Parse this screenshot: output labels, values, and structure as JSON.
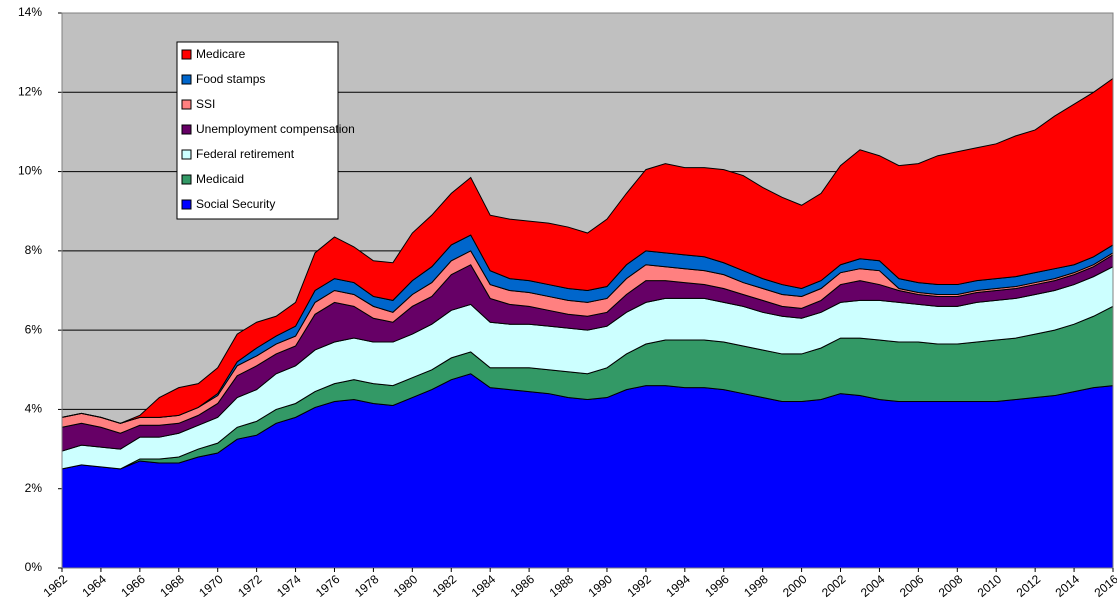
{
  "chart_data": {
    "type": "stacked-area",
    "x": [
      1962,
      1963,
      1964,
      1965,
      1966,
      1967,
      1968,
      1969,
      1970,
      1971,
      1972,
      1973,
      1974,
      1975,
      1976,
      1977,
      1978,
      1979,
      1980,
      1981,
      1982,
      1983,
      1984,
      1985,
      1986,
      1987,
      1988,
      1989,
      1990,
      1991,
      1992,
      1993,
      1994,
      1995,
      1996,
      1997,
      1998,
      1999,
      2000,
      2001,
      2002,
      2003,
      2004,
      2005,
      2006,
      2007,
      2008,
      2009,
      2010,
      2011,
      2012,
      2013,
      2014,
      2015,
      2016
    ],
    "xlim": [
      1962,
      2016
    ],
    "xticks": [
      1962,
      1964,
      1966,
      1968,
      1970,
      1972,
      1974,
      1976,
      1978,
      1980,
      1982,
      1984,
      1986,
      1988,
      1990,
      1992,
      1994,
      1996,
      1998,
      2000,
      2002,
      2004,
      2006,
      2008,
      2010,
      2012,
      2014,
      2016
    ],
    "ylim": [
      0,
      14
    ],
    "yticks": [
      {
        "value": 0,
        "label": "0%"
      },
      {
        "value": 2,
        "label": "2%"
      },
      {
        "value": 4,
        "label": "4%"
      },
      {
        "value": 6,
        "label": "6%"
      },
      {
        "value": 8,
        "label": "8%"
      },
      {
        "value": 10,
        "label": "10%"
      },
      {
        "value": 12,
        "label": "12%"
      },
      {
        "value": 14,
        "label": "14%"
      }
    ],
    "grid": true,
    "legend": "upper left",
    "series": [
      {
        "name": "Social Security",
        "color": "#0000ff",
        "values": [
          2.5,
          2.6,
          2.55,
          2.5,
          2.7,
          2.65,
          2.65,
          2.8,
          2.9,
          3.25,
          3.35,
          3.65,
          3.8,
          4.05,
          4.2,
          4.25,
          4.15,
          4.1,
          4.3,
          4.5,
          4.75,
          4.9,
          4.55,
          4.5,
          4.45,
          4.4,
          4.3,
          4.25,
          4.3,
          4.5,
          4.6,
          4.6,
          4.55,
          4.55,
          4.5,
          4.4,
          4.3,
          4.2,
          4.2,
          4.25,
          4.4,
          4.35,
          4.25,
          4.2,
          4.2,
          4.2,
          4.2,
          4.2,
          4.2,
          4.25,
          4.3,
          4.35,
          4.45,
          4.55,
          4.6
        ]
      },
      {
        "name": "Medicaid",
        "color": "#339966",
        "values": [
          0,
          0,
          0,
          0,
          0.05,
          0.1,
          0.15,
          0.2,
          0.25,
          0.3,
          0.35,
          0.35,
          0.35,
          0.4,
          0.45,
          0.5,
          0.5,
          0.5,
          0.5,
          0.5,
          0.55,
          0.55,
          0.5,
          0.55,
          0.6,
          0.6,
          0.65,
          0.65,
          0.75,
          0.9,
          1.05,
          1.15,
          1.2,
          1.2,
          1.2,
          1.2,
          1.2,
          1.2,
          1.2,
          1.3,
          1.4,
          1.45,
          1.5,
          1.5,
          1.5,
          1.45,
          1.45,
          1.5,
          1.55,
          1.55,
          1.6,
          1.65,
          1.7,
          1.8,
          2.0
        ]
      },
      {
        "name": "Federal retirement",
        "color": "#ccffff",
        "values": [
          0.45,
          0.5,
          0.5,
          0.5,
          0.55,
          0.55,
          0.6,
          0.6,
          0.65,
          0.75,
          0.8,
          0.9,
          0.95,
          1.05,
          1.05,
          1.05,
          1.05,
          1.1,
          1.1,
          1.15,
          1.2,
          1.2,
          1.15,
          1.1,
          1.1,
          1.1,
          1.1,
          1.1,
          1.05,
          1.05,
          1.05,
          1.05,
          1.05,
          1.05,
          1.0,
          1.0,
          0.95,
          0.95,
          0.9,
          0.9,
          0.9,
          0.95,
          1.0,
          1.0,
          0.95,
          0.95,
          0.95,
          1.0,
          1.0,
          1.0,
          1.0,
          1.0,
          1.0,
          1.0,
          1.0
        ]
      },
      {
        "name": "Unemployment compensation",
        "color": "#660066",
        "values": [
          0.6,
          0.55,
          0.5,
          0.4,
          0.3,
          0.3,
          0.25,
          0.25,
          0.35,
          0.55,
          0.6,
          0.5,
          0.5,
          0.9,
          1.0,
          0.8,
          0.6,
          0.5,
          0.7,
          0.7,
          0.9,
          1.0,
          0.6,
          0.5,
          0.45,
          0.4,
          0.35,
          0.35,
          0.35,
          0.45,
          0.55,
          0.45,
          0.4,
          0.35,
          0.35,
          0.3,
          0.3,
          0.25,
          0.25,
          0.3,
          0.45,
          0.5,
          0.4,
          0.3,
          0.25,
          0.25,
          0.25,
          0.25,
          0.25,
          0.25,
          0.25,
          0.25,
          0.25,
          0.25,
          0.3
        ]
      },
      {
        "name": "SSI",
        "color": "#ff8080",
        "values": [
          0.25,
          0.25,
          0.25,
          0.25,
          0.2,
          0.2,
          0.2,
          0.2,
          0.2,
          0.25,
          0.25,
          0.25,
          0.25,
          0.3,
          0.3,
          0.3,
          0.3,
          0.25,
          0.3,
          0.35,
          0.35,
          0.35,
          0.35,
          0.35,
          0.35,
          0.35,
          0.35,
          0.35,
          0.35,
          0.4,
          0.4,
          0.35,
          0.35,
          0.35,
          0.35,
          0.3,
          0.3,
          0.3,
          0.3,
          0.3,
          0.3,
          0.3,
          0.35,
          0.05,
          0.05,
          0.05,
          0.05,
          0.05,
          0.05,
          0.05,
          0.05,
          0.05,
          0.05,
          0.05,
          0.05
        ]
      },
      {
        "name": "Food stamps",
        "color": "#0066cc",
        "values": [
          0,
          0,
          0,
          0,
          0,
          0,
          0,
          0,
          0.05,
          0.1,
          0.2,
          0.2,
          0.25,
          0.3,
          0.3,
          0.3,
          0.25,
          0.3,
          0.35,
          0.4,
          0.4,
          0.4,
          0.35,
          0.3,
          0.3,
          0.3,
          0.3,
          0.3,
          0.3,
          0.35,
          0.35,
          0.35,
          0.35,
          0.35,
          0.3,
          0.3,
          0.25,
          0.25,
          0.2,
          0.2,
          0.2,
          0.25,
          0.25,
          0.25,
          0.25,
          0.25,
          0.25,
          0.25,
          0.25,
          0.25,
          0.25,
          0.25,
          0.2,
          0.2,
          0.2
        ]
      },
      {
        "name": "Medicare",
        "color": "#ff0000",
        "values": [
          0,
          0,
          0,
          0,
          0.05,
          0.5,
          0.7,
          0.6,
          0.65,
          0.7,
          0.65,
          0.5,
          0.6,
          0.95,
          1.05,
          0.9,
          0.9,
          0.95,
          1.2,
          1.3,
          1.3,
          1.45,
          1.4,
          1.5,
          1.5,
          1.55,
          1.55,
          1.45,
          1.7,
          1.8,
          2.05,
          2.25,
          2.2,
          2.25,
          2.35,
          2.4,
          2.3,
          2.2,
          2.1,
          2.2,
          2.5,
          2.75,
          2.65,
          2.85,
          3.0,
          3.25,
          3.35,
          3.35,
          3.4,
          3.55,
          3.6,
          3.85,
          4.05,
          4.15,
          4.2
        ]
      }
    ]
  }
}
